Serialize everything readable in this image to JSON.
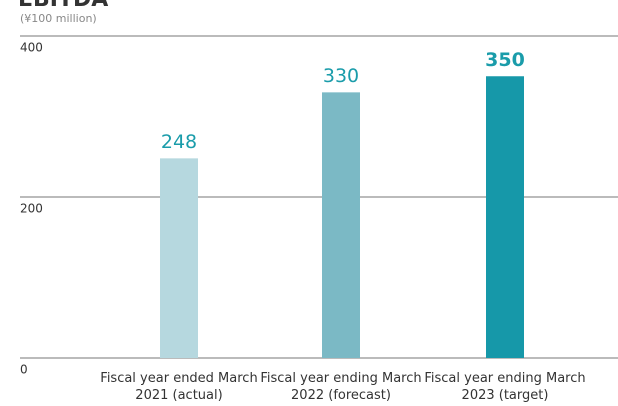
{
  "chart_data": {
    "type": "bar",
    "title": "EBITDA",
    "subtitle": "(¥100 million)",
    "categories": [
      "Fiscal year ended March 2021 (actual)",
      "Fiscal year ending March 2022 (forecast)",
      "Fiscal year ending March 2023 (target)"
    ],
    "values": [
      248,
      330,
      350
    ],
    "colors": [
      "#b6d8df",
      "#7bb9c5",
      "#1698a9"
    ],
    "value_label_color": "#1a9caa",
    "ylim": [
      0,
      400
    ],
    "yticks": [
      0,
      200,
      400
    ],
    "grid": true
  }
}
